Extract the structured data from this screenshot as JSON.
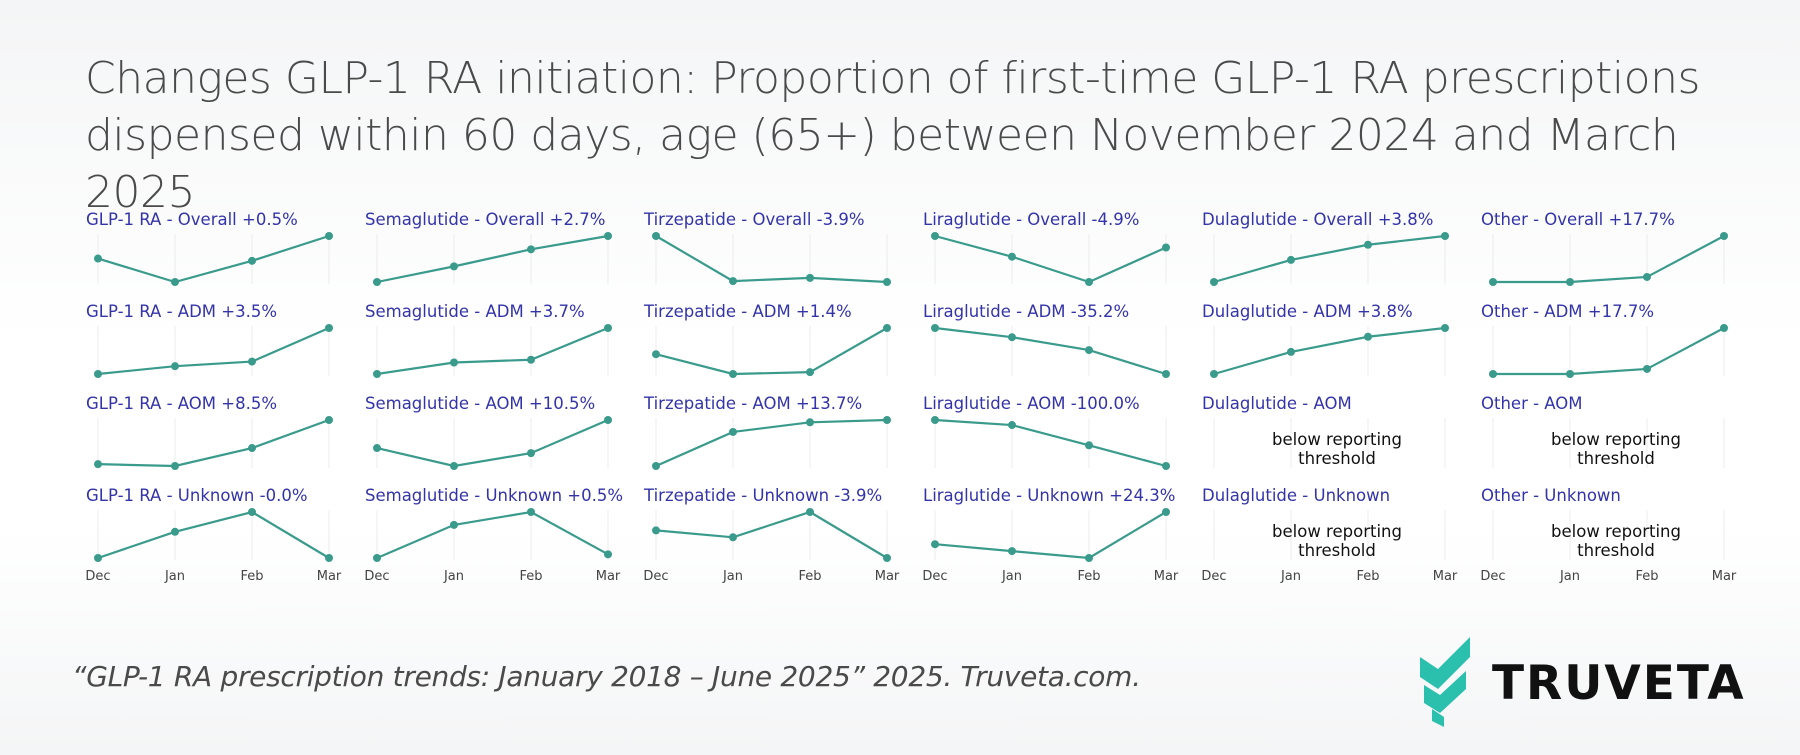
{
  "title_lines": [
    "Changes GLP-1 RA initiation: Proportion of first-time GLP-1 RA prescriptions",
    "dispensed within 60 days, age (65+) between November 2024 and March 2025"
  ],
  "footer": "“GLP-1 RA prescription trends: January 2018 – June 2025” 2025. Truveta.com.",
  "brand": "TRUVETA",
  "colors": {
    "line": "#3a9b8c",
    "title": "#3333aa",
    "brand": "#2bbfae"
  },
  "chart_data": {
    "type": "line",
    "layout": "small-multiples",
    "x": [
      "Dec",
      "Jan",
      "Feb",
      "Mar"
    ],
    "rows": [
      "Overall",
      "ADM",
      "AOM",
      "Unknown"
    ],
    "columns": [
      "GLP-1 RA",
      "Semaglutide",
      "Tirzepatide",
      "Liraglutide",
      "Dulaglutide",
      "Other"
    ],
    "panels": [
      {
        "title": "GLP-1 RA - Overall +0.5%",
        "values": [
          0.51,
          0.0,
          0.46,
          1.0
        ]
      },
      {
        "title": "Semaglutide - Overall +2.7%",
        "values": [
          0.0,
          0.34,
          0.71,
          1.0
        ]
      },
      {
        "title": "Tirzepatide - Overall -3.9%",
        "values": [
          1.0,
          0.02,
          0.09,
          0.0
        ]
      },
      {
        "title": "Liraglutide - Overall -4.9%",
        "values": [
          1.0,
          0.55,
          0.0,
          0.75
        ]
      },
      {
        "title": "Dulaglutide - Overall +3.8%",
        "values": [
          0.0,
          0.48,
          0.81,
          1.0
        ]
      },
      {
        "title": "Other - Overall +17.7%",
        "values": [
          0.0,
          0.0,
          0.11,
          1.0
        ]
      },
      {
        "title": "GLP-1 RA - ADM +3.5%",
        "values": [
          0.0,
          0.17,
          0.27,
          1.0
        ]
      },
      {
        "title": "Semaglutide - ADM +3.7%",
        "values": [
          0.0,
          0.25,
          0.31,
          1.0
        ]
      },
      {
        "title": "Tirzepatide - ADM +1.4%",
        "values": [
          0.43,
          0.0,
          0.04,
          1.0
        ]
      },
      {
        "title": "Liraglutide - ADM -35.2%",
        "values": [
          1.0,
          0.8,
          0.52,
          0.0
        ]
      },
      {
        "title": "Dulaglutide - ADM +3.8%",
        "values": [
          0.0,
          0.48,
          0.81,
          1.0
        ]
      },
      {
        "title": "Other - ADM +17.7%",
        "values": [
          0.0,
          0.0,
          0.11,
          1.0
        ]
      },
      {
        "title": "GLP-1 RA - AOM +8.5%",
        "values": [
          0.04,
          0.0,
          0.39,
          1.0
        ]
      },
      {
        "title": "Semaglutide - AOM +10.5%",
        "values": [
          0.39,
          0.0,
          0.28,
          1.0
        ]
      },
      {
        "title": "Tirzepatide - AOM +13.7%",
        "values": [
          0.0,
          0.74,
          0.95,
          1.0
        ]
      },
      {
        "title": "Liraglutide - AOM -100.0%",
        "values": [
          1.0,
          0.89,
          0.45,
          0.0
        ]
      },
      {
        "title": "Dulaglutide - AOM",
        "values": null,
        "note": "below reporting threshold"
      },
      {
        "title": "Other - AOM",
        "values": null,
        "note": "below reporting threshold"
      },
      {
        "title": "GLP-1 RA - Unknown -0.0%",
        "values": [
          0.0,
          0.57,
          1.0,
          0.0
        ]
      },
      {
        "title": "Semaglutide - Unknown +0.5%",
        "values": [
          0.0,
          0.72,
          1.0,
          0.08
        ]
      },
      {
        "title": "Tirzepatide - Unknown -3.9%",
        "values": [
          0.6,
          0.45,
          1.0,
          0.0
        ]
      },
      {
        "title": "Liraglutide - Unknown +24.3%",
        "values": [
          0.3,
          0.15,
          0.0,
          1.0
        ]
      },
      {
        "title": "Dulaglutide - Unknown",
        "values": null,
        "note": "below reporting threshold"
      },
      {
        "title": "Other - Unknown",
        "values": null,
        "note": "below reporting threshold"
      }
    ]
  }
}
